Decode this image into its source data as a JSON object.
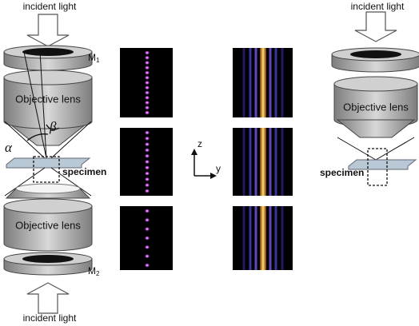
{
  "left": {
    "top_light": "incident light",
    "mirror1": "M",
    "mirror1_sub": "1",
    "lens_top": "Objective lens",
    "beta": "β",
    "alpha": "α",
    "specimen": "specimen",
    "lens_bottom": "Objective lens",
    "mirror2": "M",
    "mirror2_sub": "2",
    "bottom_light": "incident light"
  },
  "axes": {
    "z": "z",
    "y": "y"
  },
  "right": {
    "light": "incident light",
    "lens": "Objective lens",
    "specimen": "specimen"
  }
}
